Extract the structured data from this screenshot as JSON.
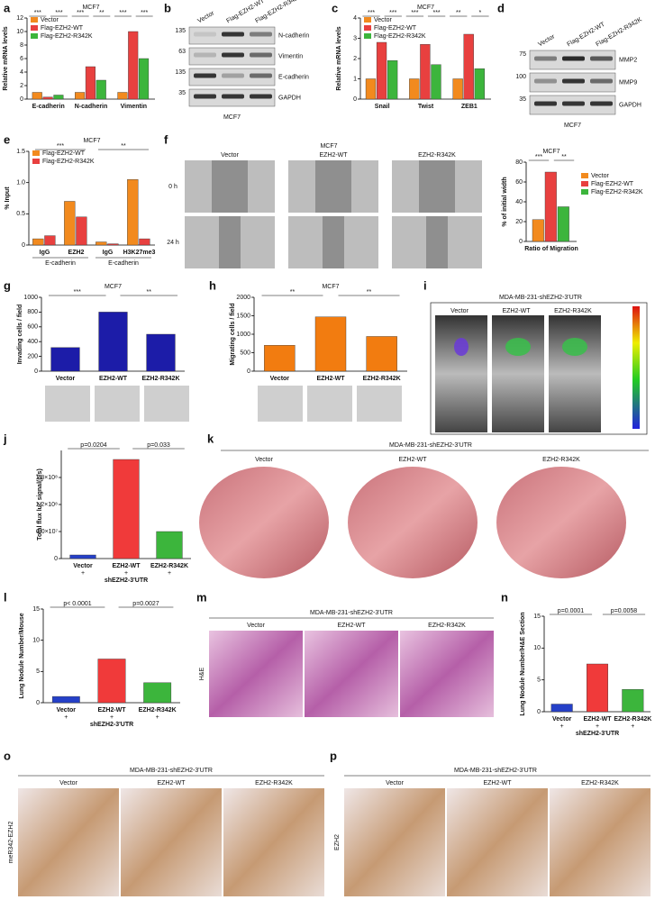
{
  "chart_data": [
    {
      "type": "bar",
      "title": "MCF7",
      "ylabel": "Relative mRNA levels",
      "categories": [
        "E-cadherin",
        "N-cadherin",
        "Vimentin"
      ],
      "series": [
        {
          "name": "Vector",
          "color": "#f28a1e",
          "values": [
            1,
            1,
            1
          ]
        },
        {
          "name": "Flag-EZH2-WT",
          "color": "#e8403f",
          "values": [
            0.3,
            4.8,
            10
          ]
        },
        {
          "name": "Flag-EZH2-R342K",
          "color": "#3cb53c",
          "values": [
            0.6,
            2.8,
            6
          ]
        }
      ],
      "ylim": [
        0,
        12
      ],
      "yticks": [
        0,
        2,
        4,
        6,
        8,
        10,
        12
      ],
      "legend": "upper left",
      "annotations": [
        "***",
        "***",
        "***",
        "**",
        "***",
        "***"
      ]
    },
    {
      "type": "bar",
      "title": "MCF7",
      "ylabel": "Relative mRNA levels",
      "categories": [
        "Snail",
        "Twist",
        "ZEB1"
      ],
      "series": [
        {
          "name": "Vector",
          "color": "#f28a1e",
          "values": [
            1,
            1,
            1
          ]
        },
        {
          "name": "Flag-EZH2-WT",
          "color": "#e8403f",
          "values": [
            2.8,
            2.7,
            3.2
          ]
        },
        {
          "name": "Flag-EZH2-R342K",
          "color": "#3cb53c",
          "values": [
            1.9,
            1.7,
            1.5
          ]
        }
      ],
      "ylim": [
        0,
        4
      ],
      "yticks": [
        0,
        1,
        2,
        3,
        4
      ],
      "legend": "upper left",
      "annotations": [
        "***",
        "***",
        "***",
        "***",
        "**",
        "*"
      ]
    },
    {
      "type": "bar",
      "title": "MCF7",
      "ylabel": "% Input",
      "categories": [
        "IgG",
        "EZH2",
        "IgG",
        "H3K27me3"
      ],
      "series": [
        {
          "name": "Flag-EZH2-WT",
          "color": "#f28a1e",
          "values": [
            0.1,
            0.7,
            0.05,
            1.05
          ]
        },
        {
          "name": "Flag-EZH2-R342K",
          "color": "#e8403f",
          "values": [
            0.15,
            0.45,
            0.02,
            0.1
          ]
        }
      ],
      "ylim": [
        0,
        1.5
      ],
      "yticks": [
        0,
        0.5,
        {
          "value": 1,
          "label": "1.0"
        },
        1.5
      ],
      "legend": "upper left",
      "group_labels": [
        "E-cadherin",
        "E-cadherin"
      ],
      "annotations": [
        "***",
        "**"
      ]
    },
    {
      "type": "bar",
      "title": "MCF7",
      "ylabel": "% of initial width",
      "categories": [
        "Ratio of Migration"
      ],
      "series": [
        {
          "name": "Vector",
          "color": "#f28a1e",
          "values": [
            22
          ]
        },
        {
          "name": "Flag-EZH2-WT",
          "color": "#e8403f",
          "values": [
            70
          ]
        },
        {
          "name": "Flag-EZH2-R342K",
          "color": "#3cb53c",
          "values": [
            35
          ]
        }
      ],
      "ylim": [
        0,
        80
      ],
      "yticks": [
        0,
        20,
        40,
        60,
        80
      ],
      "legend": "right",
      "annotations": [
        "***",
        "**"
      ]
    },
    {
      "type": "bar",
      "title": "MCF7",
      "ylabel": "Invading cells / field",
      "categories": [
        "Vector",
        "EZH2-WT",
        "EZH2-R342K"
      ],
      "values": [
        320,
        800,
        500
      ],
      "colors": [
        "#1c1ca8",
        "#1c1ca8",
        "#1c1ca8"
      ],
      "ylim": [
        0,
        1000
      ],
      "yticks": [
        0,
        200,
        400,
        600,
        800,
        1000
      ],
      "annotations": [
        "***",
        "**"
      ]
    },
    {
      "type": "bar",
      "title": "MCF7",
      "ylabel": "Migrating cells / field",
      "categories": [
        "Vector",
        "EZH2-WT",
        "EZH2-R342K"
      ],
      "values": [
        700,
        1470,
        940
      ],
      "colors": [
        "#f27c10",
        "#f27c10",
        "#f27c10"
      ],
      "ylim": [
        0,
        2000
      ],
      "yticks": [
        0,
        500,
        1000,
        1500,
        2000
      ],
      "annotations": [
        "**",
        "**"
      ]
    },
    {
      "type": "bar",
      "ylabel": "Total flux luc signal(p/s)",
      "categories": [
        "Vector",
        "EZH2-WT",
        "EZH2-R342K"
      ],
      "values": [
        8000000,
        220000000,
        60000000
      ],
      "colors": [
        "#2540c8",
        "#f03a3a",
        "#3cb53c"
      ],
      "ylim": [
        0,
        240000000
      ],
      "yticks": [
        0,
        {
          "value": 60000000,
          "label": "6.0×10⁷"
        },
        {
          "value": 120000000,
          "label": "1.2×10⁸"
        },
        {
          "value": 180000000,
          "label": "1.8×10⁸"
        }
      ],
      "condition_marks": [
        "+",
        "+",
        "+"
      ],
      "condition_label": "shEZH2-3'UTR",
      "annotations": [
        "p=0.0204",
        "p=0.033"
      ]
    },
    {
      "type": "bar",
      "ylabel": "Lung Nodule Number/Mouse",
      "categories": [
        "Vector",
        "EZH2-WT",
        "EZH2-R342K"
      ],
      "values": [
        1,
        7,
        3.2
      ],
      "colors": [
        "#2540c8",
        "#f03a3a",
        "#3cb53c"
      ],
      "ylim": [
        0,
        15
      ],
      "yticks": [
        0,
        5,
        10,
        15
      ],
      "condition_marks": [
        "+",
        "+",
        "+"
      ],
      "condition_label": "shEZH2-3'UTR",
      "annotations": [
        "p< 0.0001",
        "p=0.0027"
      ]
    },
    {
      "type": "bar",
      "ylabel": "Lung Nodule Number/H&E Section",
      "categories": [
        "Vector",
        "EZH2-WT",
        "EZH2-R342K"
      ],
      "values": [
        1.2,
        7.5,
        3.5
      ],
      "colors": [
        "#2540c8",
        "#f03a3a",
        "#3cb53c"
      ],
      "ylim": [
        0,
        15
      ],
      "yticks": [
        0,
        5,
        10,
        15
      ],
      "condition_marks": [
        "+",
        "+",
        "+"
      ],
      "condition_label": "shEZH2-3'UTR",
      "annotations": [
        "p=0.0001",
        "p=0.0058"
      ]
    }
  ],
  "figure": {
    "panel_letters": [
      "a",
      "b",
      "c",
      "d",
      "e",
      "f",
      "g",
      "h",
      "i",
      "j",
      "k",
      "l",
      "m",
      "n",
      "o",
      "p"
    ],
    "b": {
      "lanes": [
        "Vector",
        "Flag-EZH2-WT",
        "Flag-EZH2-R342K"
      ],
      "markers": [
        135,
        63,
        135,
        35
      ],
      "bands": [
        "N-cadherin",
        "Vimentin",
        "E-cadherin",
        "GAPDH"
      ],
      "cell_line": "MCF7"
    },
    "d": {
      "lanes": [
        "Vector",
        "Flag-EZH2-WT",
        "Flag-EZH2-R342K"
      ],
      "markers": [
        75,
        100,
        35
      ],
      "bands": [
        "MMP2",
        "MMP9",
        "GAPDH"
      ],
      "cell_line": "MCF7"
    },
    "f": {
      "title": "MCF7",
      "groups": [
        "Vector",
        "EZH2-WT",
        "EZH2-R342K"
      ],
      "times": [
        "0 h",
        "24 h"
      ]
    },
    "i": {
      "title": "MDA-MB-231-shEZH2-3'UTR",
      "groups": [
        "Vector",
        "EZH2-WT",
        "EZH2-R342K"
      ]
    },
    "k": {
      "title": "MDA-MB-231-shEZH2-3'UTR",
      "groups": [
        "Vector",
        "EZH2-WT",
        "EZH2-R342K"
      ]
    },
    "m": {
      "title": "MDA-MB-231-shEZH2-3'UTR",
      "groups": [
        "Vector",
        "EZH2-WT",
        "EZH2-R342K"
      ],
      "stain": "H&E"
    },
    "o": {
      "title": "MDA-MB-231-shEZH2-3'UTR",
      "groups": [
        "Vector",
        "EZH2-WT",
        "EZH2-R342K"
      ],
      "stain": "meR342-EZH2"
    },
    "p": {
      "title": "MDA-MB-231-shEZH2-3'UTR",
      "groups": [
        "Vector",
        "EZH2-WT",
        "EZH2-R342K"
      ],
      "stain": "EZH2"
    }
  }
}
